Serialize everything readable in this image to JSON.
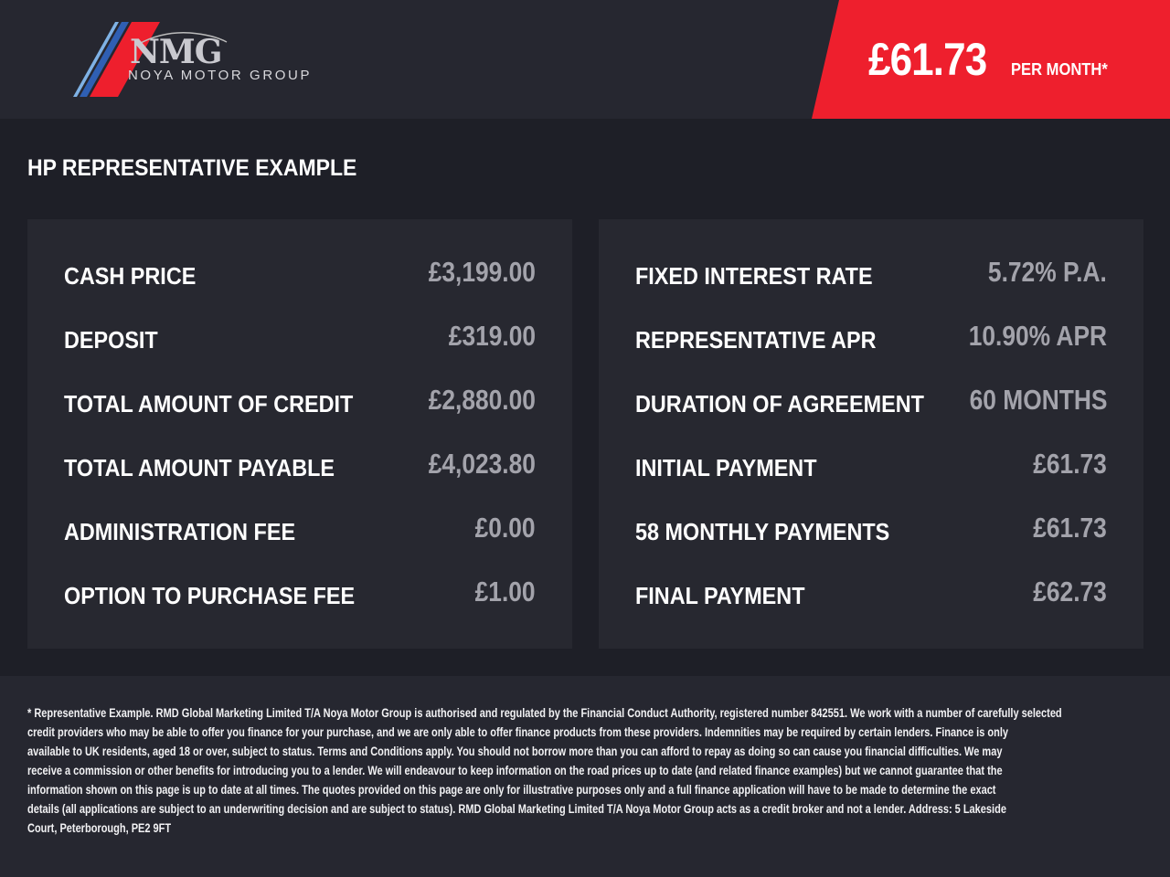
{
  "brand": {
    "logo_mark": "NMG",
    "logo_text": "NOYA MOTOR GROUP",
    "colors": {
      "red": "#ee1f2d",
      "blue": "#2f5fb3",
      "light_blue": "#7fb2e5"
    }
  },
  "banner": {
    "price": "£61.73",
    "per_month": "PER MONTH*",
    "color": "#ee1f2d"
  },
  "section_title": "HP REPRESENTATIVE EXAMPLE",
  "left_rows": [
    {
      "label": "CASH PRICE",
      "value": "£3,199.00"
    },
    {
      "label": "DEPOSIT",
      "value": "£319.00"
    },
    {
      "label": "TOTAL AMOUNT OF CREDIT",
      "value": "£2,880.00"
    },
    {
      "label": "TOTAL AMOUNT PAYABLE",
      "value": "£4,023.80"
    },
    {
      "label": "ADMINISTRATION FEE",
      "value": "£0.00"
    },
    {
      "label": "OPTION TO PURCHASE FEE",
      "value": "£1.00"
    }
  ],
  "right_rows": [
    {
      "label": "FIXED INTEREST RATE",
      "value": "5.72% P.A."
    },
    {
      "label": "REPRESENTATIVE APR",
      "value": "10.90% APR"
    },
    {
      "label": "DURATION OF AGREEMENT",
      "value": "60 MONTHS"
    },
    {
      "label": "INITIAL PAYMENT",
      "value": "£61.73"
    },
    {
      "label": "58 MONTHLY PAYMENTS",
      "value": "£61.73"
    },
    {
      "label": "FINAL PAYMENT",
      "value": "£62.73"
    }
  ],
  "disclaimer_lines": [
    "* Representative Example. RMD Global Marketing Limited T/A Noya Motor Group is authorised and regulated by the Financial Conduct Authority, registered number 842551. We work with a number of carefully selected",
    "credit providers who may be able to offer you finance for your purchase, and we are only able to offer finance products from these providers. Indemnities may be required by certain lenders. Finance is only",
    "available to UK residents, aged 18 or over, subject to status. Terms and Conditions apply. You should not borrow more than you can afford to repay as doing so can cause you financial difficulties. We may",
    "receive a commission or other benefits for introducing you to a lender. We will endeavour to keep information on the road prices up to date (and related finance examples) but we cannot guarantee that the",
    "information shown on this page is up to date at all times. The quotes provided on this page are only for illustrative purposes only and a full finance application will have to be made to determine the exact",
    "details (all applications are subject to an underwriting decision and are subject to status). RMD Global Marketing Limited T/A Noya Motor Group acts as a credit broker and not a lender. Address:  5 Lakeside",
    "Court, Peterborough, PE2 9FT"
  ]
}
